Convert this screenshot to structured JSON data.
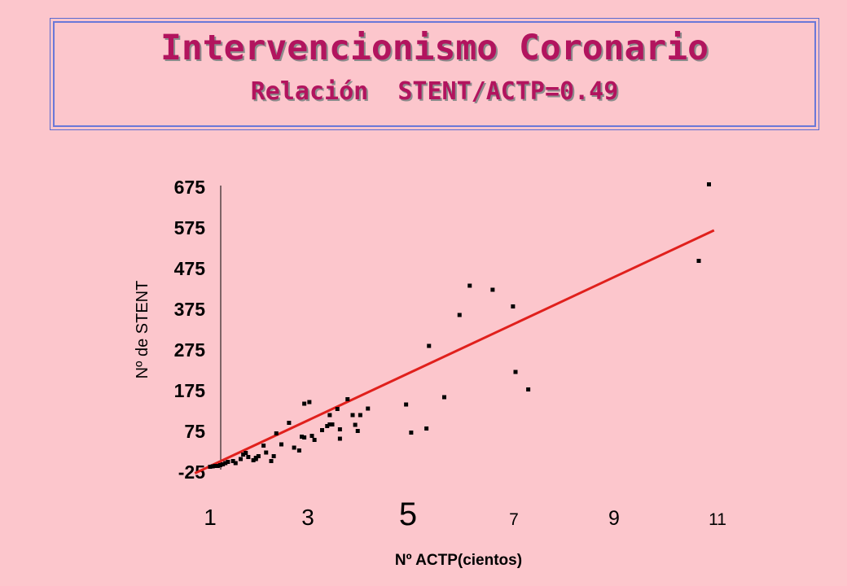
{
  "header": {
    "title": "Intervencionismo Coronario",
    "subtitle": "Relación  STENT/ACTP=0.49"
  },
  "colors": {
    "background": "#fcc6cc",
    "title": "#b2145e",
    "regression_line": "#e0201c",
    "points": "#000000"
  },
  "chart_data": {
    "type": "scatter",
    "title": "",
    "xlabel": "Nº ACTP(cientos)",
    "ylabel": "Nº de STENT",
    "yticks": [
      "675",
      "575",
      "475",
      "375",
      "275",
      "175",
      "75",
      "-25"
    ],
    "ytick_values": [
      675,
      575,
      475,
      375,
      275,
      175,
      75,
      -25
    ],
    "xticks": [
      "1",
      "3",
      "5",
      "7",
      "9",
      "11"
    ],
    "xtick_values": [
      1,
      3,
      5,
      7,
      9,
      11
    ],
    "ylim": [
      -25,
      675
    ],
    "grid": false,
    "legend": "none",
    "regression_line": {
      "x": [
        0.7,
        10.9
      ],
      "y": [
        -30,
        567
      ]
    },
    "points": [
      {
        "x": 1.0,
        "y": -14
      },
      {
        "x": 1.05,
        "y": -13
      },
      {
        "x": 1.1,
        "y": -12
      },
      {
        "x": 1.15,
        "y": -12
      },
      {
        "x": 1.2,
        "y": -10
      },
      {
        "x": 1.25,
        "y": -8
      },
      {
        "x": 1.3,
        "y": -5
      },
      {
        "x": 1.35,
        "y": -2
      },
      {
        "x": 1.45,
        "y": 0
      },
      {
        "x": 1.5,
        "y": -5
      },
      {
        "x": 1.6,
        "y": 5
      },
      {
        "x": 1.65,
        "y": 16
      },
      {
        "x": 1.7,
        "y": 20
      },
      {
        "x": 1.75,
        "y": 10
      },
      {
        "x": 1.85,
        "y": 2
      },
      {
        "x": 1.9,
        "y": 5
      },
      {
        "x": 1.9,
        "y": 8
      },
      {
        "x": 1.95,
        "y": 12
      },
      {
        "x": 2.05,
        "y": 38
      },
      {
        "x": 2.1,
        "y": 21
      },
      {
        "x": 2.2,
        "y": 0
      },
      {
        "x": 2.25,
        "y": 12
      },
      {
        "x": 2.3,
        "y": 68
      },
      {
        "x": 2.4,
        "y": 41
      },
      {
        "x": 2.55,
        "y": 94
      },
      {
        "x": 2.65,
        "y": 33
      },
      {
        "x": 2.75,
        "y": 26
      },
      {
        "x": 2.8,
        "y": 60
      },
      {
        "x": 2.85,
        "y": 58
      },
      {
        "x": 2.85,
        "y": 141
      },
      {
        "x": 2.95,
        "y": 145
      },
      {
        "x": 3.0,
        "y": 62
      },
      {
        "x": 3.05,
        "y": 52
      },
      {
        "x": 3.2,
        "y": 76
      },
      {
        "x": 3.3,
        "y": 86
      },
      {
        "x": 3.35,
        "y": 90
      },
      {
        "x": 3.35,
        "y": 113
      },
      {
        "x": 3.4,
        "y": 90
      },
      {
        "x": 3.5,
        "y": 128
      },
      {
        "x": 3.55,
        "y": 55
      },
      {
        "x": 3.55,
        "y": 78
      },
      {
        "x": 3.7,
        "y": 152
      },
      {
        "x": 3.8,
        "y": 113
      },
      {
        "x": 3.85,
        "y": 89
      },
      {
        "x": 3.9,
        "y": 74
      },
      {
        "x": 3.95,
        "y": 113
      },
      {
        "x": 4.1,
        "y": 129
      },
      {
        "x": 4.85,
        "y": 139
      },
      {
        "x": 4.95,
        "y": 70
      },
      {
        "x": 5.25,
        "y": 80
      },
      {
        "x": 5.3,
        "y": 283
      },
      {
        "x": 5.6,
        "y": 157
      },
      {
        "x": 5.9,
        "y": 359
      },
      {
        "x": 6.1,
        "y": 431
      },
      {
        "x": 6.55,
        "y": 421
      },
      {
        "x": 6.95,
        "y": 380
      },
      {
        "x": 7.0,
        "y": 219
      },
      {
        "x": 7.25,
        "y": 176
      },
      {
        "x": 10.6,
        "y": 492
      },
      {
        "x": 10.8,
        "y": 680
      }
    ]
  }
}
